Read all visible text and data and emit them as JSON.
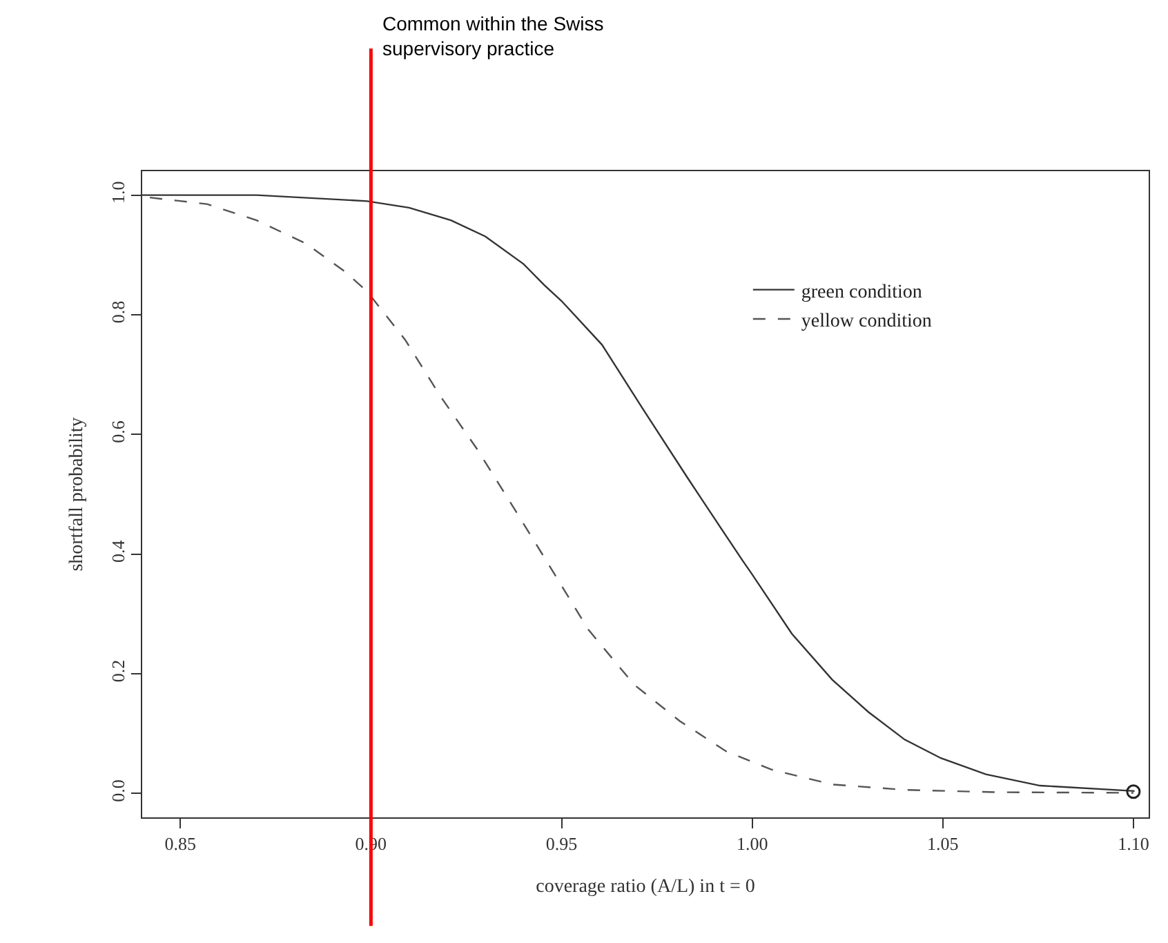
{
  "chart_data": {
    "type": "line",
    "xlabel": "coverage ratio (A/L) in t = 0",
    "ylabel": "shortfall probability",
    "xlim": [
      0.84,
      1.104
    ],
    "ylim": [
      -0.04,
      1.04
    ],
    "xticks": [
      {
        "value": 0.85,
        "label": "0.85"
      },
      {
        "value": 0.9,
        "label": "0.90"
      },
      {
        "value": 0.95,
        "label": "0.95"
      },
      {
        "value": 1.0,
        "label": "1.00"
      },
      {
        "value": 1.05,
        "label": "1.05"
      },
      {
        "value": 1.1,
        "label": "1.10"
      }
    ],
    "yticks": [
      {
        "value": 0,
        "label": "0.0"
      },
      {
        "value": 0.2,
        "label": "0.2"
      },
      {
        "value": 0.4,
        "label": "0.4"
      },
      {
        "value": 0.6,
        "label": "0.6"
      },
      {
        "value": 0.8,
        "label": "0.8"
      },
      {
        "value": 1,
        "label": "1.0"
      }
    ],
    "grid": false,
    "legend": "top right",
    "series": [
      {
        "name": "green condition",
        "color": "#333333",
        "line_style": "solid",
        "x": [
          0.84,
          0.87,
          0.899,
          0.91,
          0.921,
          0.93,
          0.94,
          0.9454,
          0.95,
          0.9606,
          0.9713,
          0.983,
          0.991,
          0.9975,
          1.0,
          1.0104,
          1.021,
          1.0305,
          1.04,
          1.0495,
          1.0613,
          1.0755,
          1.1003
        ],
        "values": [
          1.0,
          1.0,
          0.99,
          0.979,
          0.958,
          0.931,
          0.885,
          0.85,
          0.823,
          0.75,
          0.643,
          0.528,
          0.451,
          0.389,
          0.366,
          0.267,
          0.19,
          0.136,
          0.09,
          0.059,
          0.032,
          0.013,
          0.004
        ]
      },
      {
        "name": "yellow condition",
        "color": "#555555",
        "line_style": "dashed",
        "x": [
          0.842,
          0.857,
          0.87,
          0.883,
          0.893,
          0.899,
          0.909,
          0.918,
          0.928,
          0.937,
          0.946,
          0.957,
          0.969,
          0.981,
          0.993,
          1.005,
          1.021,
          1.04,
          1.064,
          1.1
        ],
        "values": [
          0.996,
          0.985,
          0.958,
          0.919,
          0.873,
          0.839,
          0.758,
          0.666,
          0.574,
          0.482,
          0.389,
          0.274,
          0.182,
          0.121,
          0.071,
          0.04,
          0.015,
          0.006,
          0.002,
          0.001
        ]
      },
      {
        "type": "scatter",
        "marker": "circle",
        "color": "#222222",
        "x": [
          1.1
        ],
        "values": [
          0.003
        ]
      }
    ],
    "ref_lines": [
      {
        "axis": "x",
        "value": 0.9,
        "label": "Common within the Swiss supervisory practice",
        "color": "#ff0000",
        "line_style": "solid"
      }
    ]
  }
}
